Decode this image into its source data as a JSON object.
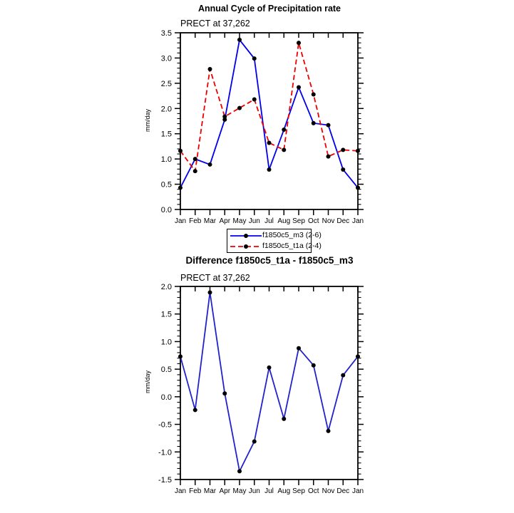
{
  "figure": {
    "background_color": "#ffffff",
    "axis_color": "#000000"
  },
  "chart_data": [
    {
      "type": "line",
      "title": "Annual Cycle of Precipitation rate",
      "subtitle": "PRECT at 37,262",
      "ylabel": "mm/day",
      "xlabel": "",
      "categories": [
        "Jan",
        "Feb",
        "Mar",
        "Apr",
        "May",
        "Jun",
        "Jul",
        "Aug",
        "Sep",
        "Oct",
        "Nov",
        "Dec",
        "Jan"
      ],
      "ylim": [
        0.0,
        3.5
      ],
      "ytick_major": 0.5,
      "ytick_minor": 0.1,
      "grid": false,
      "legend_position": "below-chart-boxed",
      "marker": "circle",
      "marker_color": "#000000",
      "series": [
        {
          "name": "f1850c5_m3 (2-6)",
          "color": "#0000ee",
          "style": "solid",
          "values": [
            0.43,
            1.0,
            0.89,
            1.78,
            3.36,
            2.99,
            0.79,
            1.58,
            2.42,
            1.71,
            1.67,
            0.79,
            0.43
          ]
        },
        {
          "name": "f1850c5_t1a (2-4)",
          "color": "#ee0000",
          "style": "dashed",
          "values": [
            1.16,
            0.76,
            2.78,
            1.84,
            2.01,
            2.18,
            1.32,
            1.18,
            3.3,
            2.28,
            1.05,
            1.18,
            1.16
          ]
        }
      ]
    },
    {
      "type": "line",
      "title": "Difference f1850c5_t1a - f1850c5_m3",
      "subtitle": "PRECT at 37,262",
      "ylabel": "mm/day",
      "xlabel": "",
      "categories": [
        "Jan",
        "Feb",
        "Mar",
        "Apr",
        "May",
        "Jun",
        "Jul",
        "Aug",
        "Sep",
        "Oct",
        "Nov",
        "Dec",
        "Jan"
      ],
      "ylim": [
        -1.5,
        2.0
      ],
      "ytick_major": 0.5,
      "ytick_minor": 0.1,
      "grid": false,
      "legend_position": "none",
      "marker": "circle",
      "marker_color": "#000000",
      "series": [
        {
          "name": "difference",
          "color": "#2222cc",
          "style": "solid",
          "values": [
            0.73,
            -0.24,
            1.89,
            0.06,
            -1.35,
            -0.81,
            0.53,
            -0.4,
            0.88,
            0.57,
            -0.62,
            0.39,
            0.73
          ]
        }
      ]
    }
  ]
}
